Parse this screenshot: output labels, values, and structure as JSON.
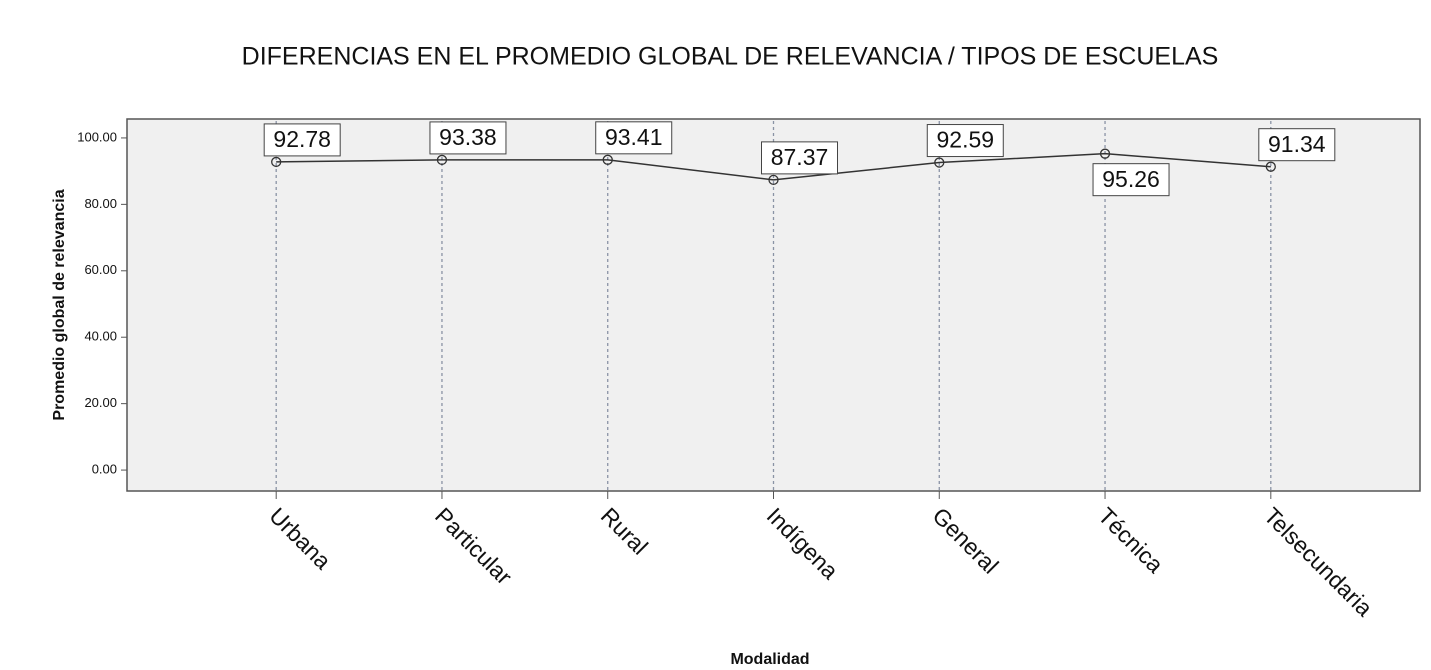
{
  "chart_data": {
    "type": "line",
    "title": "DIFERENCIAS EN EL PROMEDIO GLOBAL DE RELEVANCIA / TIPOS DE ESCUELAS",
    "x_label": "Modalidad",
    "y_label": "Promedio global de relevancia",
    "categories": [
      "Urbana",
      "Particular",
      "Rural",
      "Indígena",
      "General",
      "Técnica",
      "Telsecundaria"
    ],
    "values": [
      92.78,
      93.38,
      93.41,
      87.37,
      92.59,
      95.26,
      91.34
    ],
    "color": "#333333",
    "ylim": [
      -6.3,
      105.7
    ],
    "yticks": [
      {
        "value": 0,
        "label": "0.00"
      },
      {
        "value": 20,
        "label": "20.00"
      },
      {
        "value": 40,
        "label": "40.00"
      },
      {
        "value": 60,
        "label": "60.00"
      },
      {
        "value": 80,
        "label": "80.00"
      },
      {
        "value": 100,
        "label": "100.00"
      }
    ],
    "grid": false
  }
}
